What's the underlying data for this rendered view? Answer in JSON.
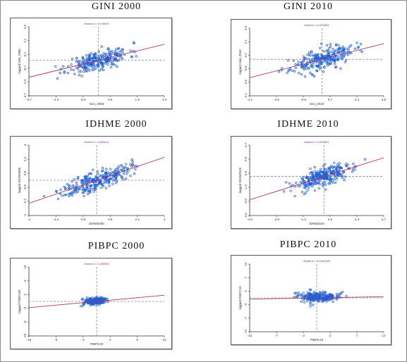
{
  "chart_data": [
    {
      "id": "gini2000",
      "type": "scatter",
      "title": "GINI 2000",
      "legend_text": "Moran's I: 0.476578",
      "xlabel": "Gini_2000",
      "ylabel": "lagged Gini_2000",
      "xlim": [
        -3.7,
        3.5
      ],
      "ylim": [
        -3.7,
        3.5
      ],
      "xticks": [
        "-3.7",
        "-2.3",
        "-0.9",
        "0.5",
        "1.9",
        "3.3"
      ],
      "yticks": [
        "3.5",
        "2.1",
        "0.7",
        "-0.7",
        "-2.3",
        "-3.7"
      ],
      "regression": {
        "slope": 0.4766,
        "intercept": 0
      },
      "scatter": {
        "center": [
          0,
          0
        ],
        "spread": [
          0.9,
          0.55
        ],
        "count": 260,
        "seed": 11
      },
      "colors": {
        "points": "#1f5fd6",
        "line": "#b0306a",
        "ref": "#8a8a8a"
      }
    },
    {
      "id": "gini2010",
      "type": "scatter",
      "title": "GINI 2010",
      "legend_text": "Moran's I: 0.504292",
      "xlabel": "Gini_2010",
      "ylabel": "lagged Gini_2010",
      "xlim": [
        -4.1,
        3.5
      ],
      "ylim": [
        -4.1,
        3.5
      ],
      "xticks": [
        "-4.1",
        "-2.5",
        "-0.9",
        "0.7",
        "2.3",
        "3.5"
      ],
      "yticks": [
        "3.5",
        "2.1",
        "0.7",
        "-0.9",
        "-2.5",
        "-4.1"
      ],
      "regression": {
        "slope": 0.5043,
        "intercept": 0
      },
      "scatter": {
        "center": [
          0,
          0
        ],
        "spread": [
          0.95,
          0.6
        ],
        "count": 260,
        "seed": 23
      },
      "colors": {
        "points": "#1f5fd6",
        "line": "#b0306a",
        "ref": "#8a8a8a"
      }
    },
    {
      "id": "idhme2000",
      "type": "scatter",
      "title": "IDHME 2000",
      "legend_text": "Moran's I: 0.652611",
      "xlabel": "IDHM2000",
      "ylabel": "lagged IDHM2000",
      "xlim": [
        -4,
        4
      ],
      "ylim": [
        -4,
        4
      ],
      "xticks": [
        "-4",
        "-2.4",
        "-0.8",
        "0.8",
        "2.4",
        "4"
      ],
      "yticks": [
        "4",
        "2.4",
        "0.8",
        "-0.8",
        "-2.4",
        "-4"
      ],
      "regression": {
        "slope": 0.6526,
        "intercept": 0
      },
      "scatter": {
        "center": [
          0,
          0
        ],
        "spread": [
          1.0,
          0.55
        ],
        "count": 280,
        "seed": 37
      },
      "colors": {
        "points": "#1f5fd6",
        "line": "#b0306a",
        "ref": "#8a8a8a"
      }
    },
    {
      "id": "idhme2010",
      "type": "scatter",
      "title": "IDHME 2010",
      "legend_text": "Moran's I: 0.595401",
      "xlabel": "IDHM2010",
      "ylabel": "lagged IDHM2010",
      "xlim": [
        -4.6,
        3.7
      ],
      "ylim": [
        -4.6,
        3.7
      ],
      "xticks": [
        "-4.6",
        "-2.9",
        "-1.2",
        "0.6",
        "2.3",
        "3.7"
      ],
      "yticks": [
        "3.7",
        "2.0",
        "0.3",
        "-1.3",
        "-3.0",
        "-4.6"
      ],
      "regression": {
        "slope": 0.5954,
        "intercept": 0
      },
      "scatter": {
        "center": [
          0,
          0
        ],
        "spread": [
          0.9,
          0.55
        ],
        "count": 280,
        "seed": 53
      },
      "colors": {
        "points": "#1f5fd6",
        "line": "#b0306a",
        "ref": "#8a8a8a"
      }
    },
    {
      "id": "pibpc2000",
      "type": "scatter",
      "title": "PIBPC 2000",
      "legend_text": "Moran's I: 0.180938",
      "xlabel": "PIBPC00",
      "ylabel": "lagged PIBPC00",
      "xlim": [
        -10,
        10
      ],
      "ylim": [
        -10,
        10
      ],
      "xticks": [
        "-10",
        "-6",
        "-2",
        "2",
        "6",
        "10"
      ],
      "yticks": [
        "10",
        "6",
        "2",
        "-2",
        "-6",
        "-10"
      ],
      "regression": {
        "slope": 0.1809,
        "intercept": 0
      },
      "scatter": {
        "center": [
          -0.2,
          0.1
        ],
        "spread": [
          0.35,
          0.2
        ],
        "count": 240,
        "seed": 71
      },
      "colors": {
        "points": "#1f5fd6",
        "line": "#b0306a",
        "ref": "#8a8a8a"
      }
    },
    {
      "id": "pibpc2010",
      "type": "scatter",
      "title": "PIBPC 2010",
      "legend_text": "Moran's I: 0.0342186",
      "xlabel": "PIBPC10",
      "ylabel": "lagged PIBPC10",
      "xlim": [
        -12,
        12
      ],
      "ylim": [
        -12,
        12
      ],
      "xticks": [
        "-12",
        "-7",
        "-2",
        "2",
        "7",
        "12"
      ],
      "yticks": [
        "12",
        "7",
        "2",
        "-2",
        "-7",
        "-12"
      ],
      "regression": {
        "slope": 0.0342,
        "intercept": 0
      },
      "scatter": {
        "center": [
          0.4,
          0.3
        ],
        "spread": [
          0.6,
          0.3
        ],
        "count": 240,
        "seed": 89
      },
      "colors": {
        "points": "#1f5fd6",
        "line": "#b0306a",
        "ref": "#8a8a8a"
      }
    }
  ]
}
